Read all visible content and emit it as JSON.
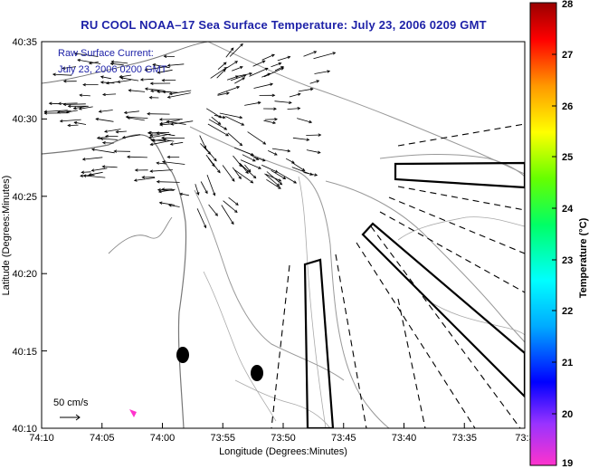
{
  "title": "RU COOL  NOAA–17  Sea Surface Temperature:  July 23, 2006 0209 GMT",
  "overlay": {
    "line1": "Raw Surface Current:",
    "line2": "July 23, 2006 0200 GMT"
  },
  "scale_label": "50 cm/s",
  "x_axis": {
    "label": "Longitude (Degrees:Minutes)",
    "ticks": [
      "74:10",
      "74:05",
      "74:00",
      "73:55",
      "73:50",
      "73:45",
      "73:40",
      "73:35",
      "73:3"
    ]
  },
  "y_axis": {
    "label": "Latitude (Degrees:Minutes)",
    "ticks": [
      "40:35",
      "40:30",
      "40:25",
      "40:20",
      "40:15",
      "40:10"
    ]
  },
  "colorbar": {
    "label": "Temperature (°C)",
    "ticks": [
      "28",
      "27",
      "26",
      "25",
      "24",
      "23",
      "22",
      "21",
      "20",
      "19"
    ],
    "min": 19,
    "max": 28,
    "colors": [
      "#ff33cc",
      "#9933ff",
      "#0000ff",
      "#00aaff",
      "#00ffff",
      "#00ff66",
      "#66ff00",
      "#ffff00",
      "#ff9900",
      "#ff0000",
      "#990000"
    ]
  },
  "colors": {
    "title": "#1e22a8",
    "contour": "#888888",
    "frame": "#000000"
  }
}
